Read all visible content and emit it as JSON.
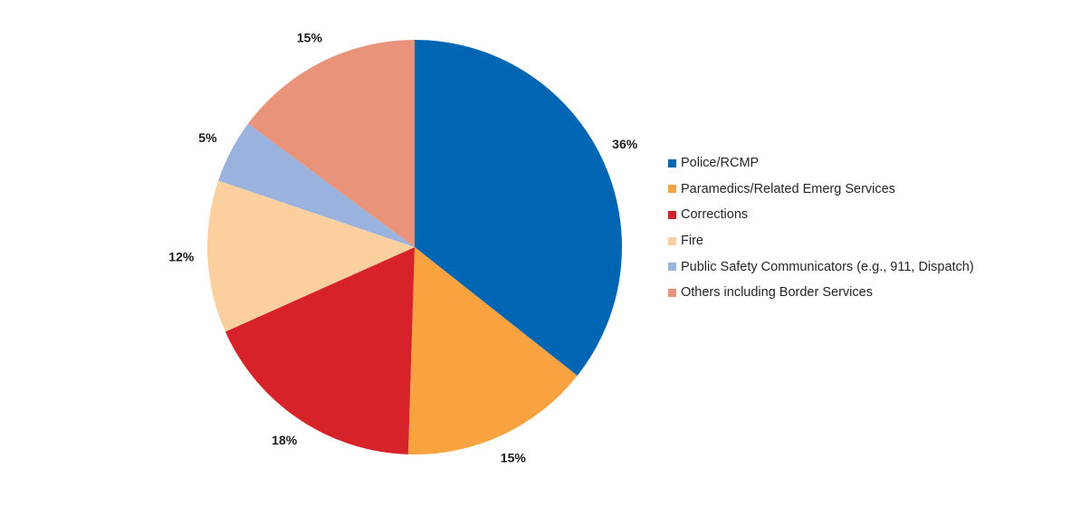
{
  "chart_data": {
    "type": "pie",
    "title": "",
    "legend_position": "right",
    "slices": [
      {
        "label": "Police/RCMP",
        "value": 36,
        "display": "36%",
        "color": "#0066B3"
      },
      {
        "label": "Paramedics/Related Emerg Services",
        "value": 15,
        "display": "15%",
        "color": "#F8A33F"
      },
      {
        "label": "Corrections",
        "value": 18,
        "display": "18%",
        "color": "#D7222A"
      },
      {
        "label": "Fire",
        "value": 12,
        "display": "12%",
        "color": "#FCD09E"
      },
      {
        "label": "Public Safety Communicators (e.g., 911, Dispatch)",
        "value": 5,
        "display": "5%",
        "color": "#9AB3DE"
      },
      {
        "label": "Others including Border Services",
        "value": 15,
        "display": "15%",
        "color": "#E8937A"
      }
    ]
  }
}
